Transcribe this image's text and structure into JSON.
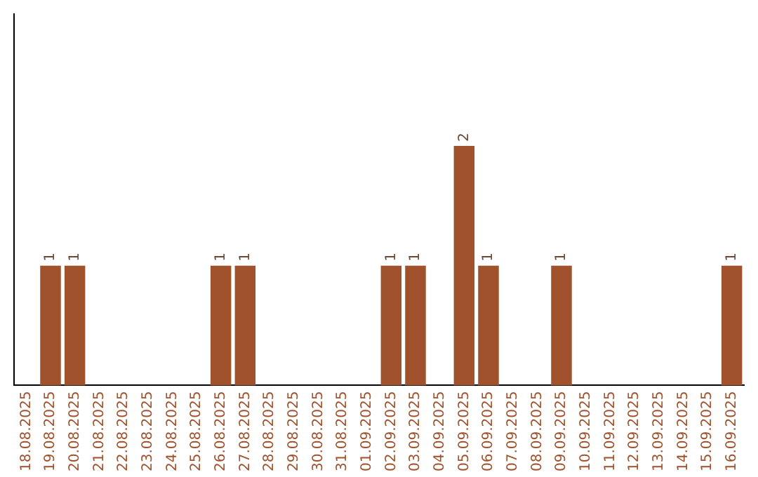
{
  "chart_data": {
    "type": "bar",
    "categories": [
      "18.08.2025",
      "19.08.2025",
      "20.08.2025",
      "21.08.2025",
      "22.08.2025",
      "23.08.2025",
      "24.08.2025",
      "25.08.2025",
      "26.08.2025",
      "27.08.2025",
      "28.08.2025",
      "29.08.2025",
      "30.08.2025",
      "31.08.2025",
      "01.09.2025",
      "02.09.2025",
      "03.09.2025",
      "04.09.2025",
      "05.09.2025",
      "06.09.2025",
      "07.09.2025",
      "08.09.2025",
      "09.09.2025",
      "10.09.2025",
      "11.09.2025",
      "12.09.2025",
      "13.09.2025",
      "14.09.2025",
      "15.09.2025",
      "16.09.2025"
    ],
    "values": [
      0,
      1,
      1,
      0,
      0,
      0,
      0,
      0,
      1,
      1,
      0,
      0,
      0,
      0,
      0,
      1,
      1,
      0,
      2,
      1,
      0,
      0,
      1,
      0,
      0,
      0,
      0,
      0,
      0,
      1
    ],
    "value_labels": [
      null,
      "1",
      "1",
      null,
      null,
      null,
      null,
      null,
      "1",
      "1",
      null,
      null,
      null,
      null,
      null,
      "1",
      "1",
      null,
      "2",
      "1",
      null,
      null,
      "1",
      null,
      null,
      null,
      null,
      null,
      null,
      "1"
    ],
    "color": "#a0522d",
    "grid": false,
    "legend": false,
    "tick_labels": "x"
  }
}
